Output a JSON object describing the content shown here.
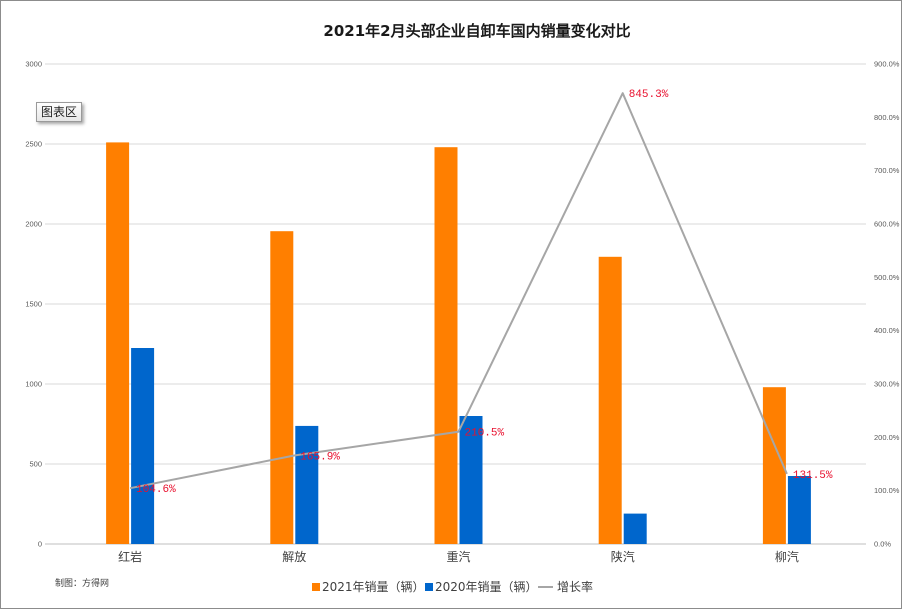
{
  "chart_data": {
    "type": "bar",
    "title": "2021年2月头部企业自卸车国内销量变化对比",
    "categories": [
      "红岩",
      "解放",
      "重汽",
      "陕汽",
      "柳汽"
    ],
    "series": [
      {
        "name": "2021年销量（辆）",
        "type": "bar",
        "color": "#ff7f00",
        "values": [
          2510,
          1955,
          2480,
          1795,
          980
        ]
      },
      {
        "name": "2020年销量（辆）",
        "type": "bar",
        "color": "#0066cc",
        "values": [
          1225,
          738,
          800,
          190,
          425
        ]
      },
      {
        "name": "增长率",
        "type": "line",
        "secondary_axis": true,
        "color": "#a6a6a6",
        "values": [
          104.6,
          165.9,
          210.5,
          845.3,
          131.5
        ],
        "data_labels": [
          "104.6%",
          "165.9%",
          "210.5%",
          "845.3%",
          "131.5%"
        ],
        "label_color": "#e8102e"
      }
    ],
    "y_left": {
      "range": [
        0,
        3000
      ],
      "ticks": [
        "0",
        "500",
        "1000",
        "1500",
        "2000",
        "2500",
        "3000"
      ]
    },
    "y_right": {
      "range": [
        0,
        900
      ],
      "ticks": [
        "0.0%",
        "100.0%",
        "200.0%",
        "300.0%",
        "400.0%",
        "500.0%",
        "600.0%",
        "700.0%",
        "800.0%",
        "900.0%"
      ]
    },
    "grid": true,
    "legend": "bottom"
  },
  "footer": {
    "credit": "制图：方得网"
  },
  "tooltip": {
    "text": "图表区"
  }
}
